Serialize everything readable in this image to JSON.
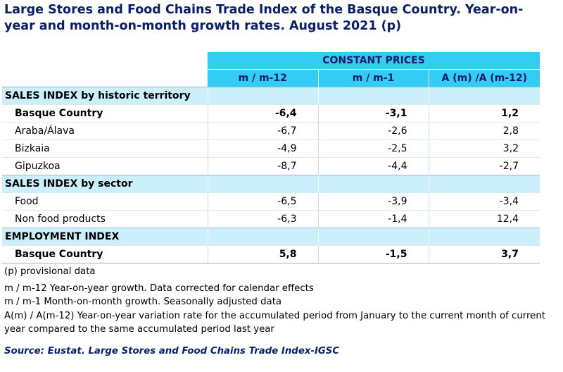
{
  "title": "Large Stores and Food Chains Trade Index of the Basque Country. Year-on-year and month-on-month growth rates. August 2021 (p)",
  "header": {
    "group_label": "CONSTANT PRICES",
    "columns": [
      "m / m-12",
      "m / m-1",
      "A (m) /A (m-12)"
    ]
  },
  "sections": [
    {
      "label": "SALES INDEX by historic territory",
      "rows": [
        {
          "label": "Basque Country",
          "values": [
            "-6,4",
            "-3,1",
            "1,2"
          ]
        },
        {
          "label": "Araba/Álava",
          "values": [
            "-6,7",
            "-2,6",
            "2,8"
          ]
        },
        {
          "label": "Bizkaia",
          "values": [
            "-4,9",
            "-2,5",
            "3,2"
          ]
        },
        {
          "label": "Gipuzkoa",
          "values": [
            "-8,7",
            "-4,4",
            "-2,7"
          ]
        }
      ]
    },
    {
      "label": "SALES INDEX by sector",
      "rows": [
        {
          "label": "Food",
          "values": [
            "-6,5",
            "-3,9",
            "-3,4"
          ]
        },
        {
          "label": "Non food products",
          "values": [
            "-6,3",
            "-1,4",
            "12,4"
          ]
        }
      ]
    },
    {
      "label": "EMPLOYMENT INDEX",
      "rows": [
        {
          "label": "Basque Country",
          "values": [
            "5,8",
            "-1,5",
            "3,7"
          ]
        }
      ]
    }
  ],
  "notes": {
    "provisional": "(p) provisional data",
    "yoy": "m / m-12 Year-on-year growth. Data corrected for calendar effects",
    "mom": "m / m-1 Month-on-month growth. Seasonally adjusted data",
    "accumulated": "A(m) / A(m-12) Year-on-year variation rate for the accumulated period from January to the current month of current year compared to the same accumulated period last year"
  },
  "source": "Source: Eustat. Large Stores and Food Chains Trade Index-IGSC",
  "colors": {
    "header_blue": "#33ccf2",
    "section_light": "#ccf0fb",
    "title_navy": "#0b1f66"
  }
}
